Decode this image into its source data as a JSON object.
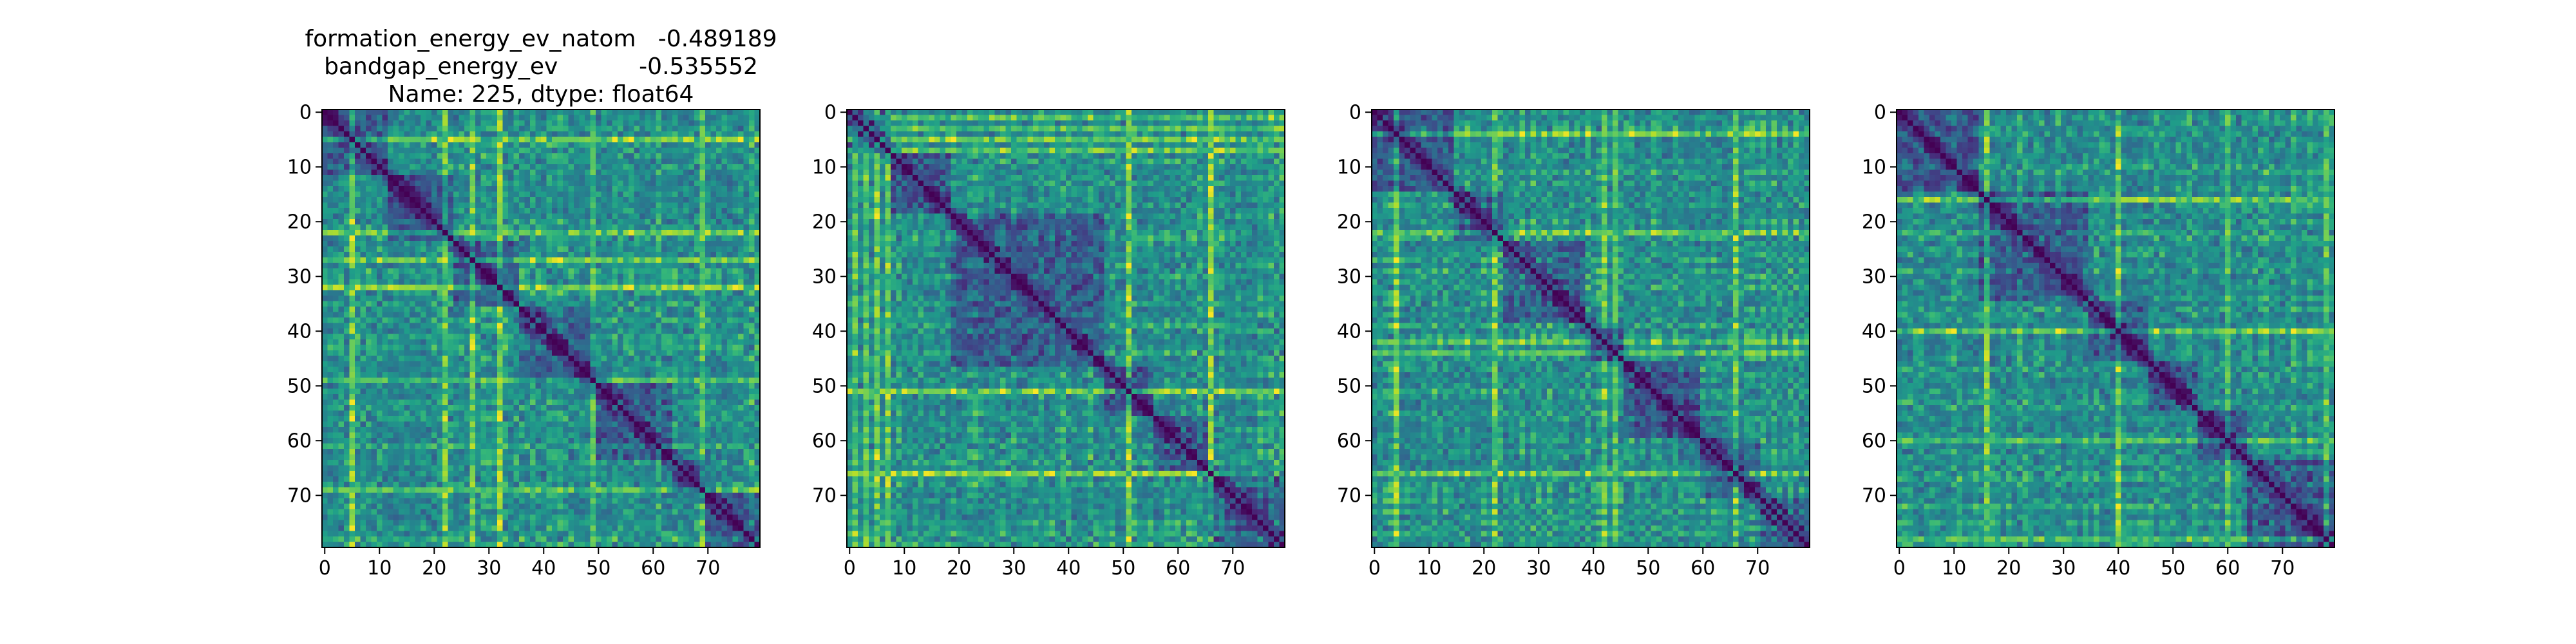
{
  "figure": {
    "title_lines": [
      "formation_energy_ev_natom   -0.489189",
      "bandgap_energy_ev           -0.535552",
      "Name: 225, dtype: float64"
    ]
  },
  "colormap": {
    "name": "viridis",
    "stops": [
      "#440154",
      "#482878",
      "#3e4989",
      "#31688e",
      "#26828e",
      "#1f9e89",
      "#35b779",
      "#6ece58",
      "#b5de2b",
      "#fde725"
    ]
  },
  "chart_data": [
    {
      "type": "heatmap",
      "title": "formation_energy_ev_natom   -0.489189\nbandgap_energy_ev           -0.535552\nName: 225, dtype: float64",
      "size": 80,
      "xticks": [
        0,
        10,
        20,
        30,
        40,
        50,
        60,
        70
      ],
      "yticks": [
        0,
        10,
        20,
        30,
        40,
        50,
        60,
        70
      ],
      "xlim": [
        -0.5,
        79.5
      ],
      "ylim": [
        79.5,
        -0.5
      ],
      "diagonal_value": 0,
      "block_boundaries": [
        12,
        24,
        36,
        50,
        64,
        70
      ],
      "bright_bands": [
        5,
        22,
        27,
        32,
        49,
        69
      ],
      "seed": 11
    },
    {
      "type": "heatmap",
      "title": "",
      "size": 80,
      "xticks": [
        0,
        10,
        20,
        30,
        40,
        50,
        60,
        70
      ],
      "yticks": [
        0,
        10,
        20,
        30,
        40,
        50,
        60,
        70
      ],
      "xlim": [
        -0.5,
        79.5
      ],
      "ylim": [
        79.5,
        -0.5
      ],
      "diagonal_value": 0,
      "block_boundaries": [
        8,
        19,
        47,
        56,
        66
      ],
      "bright_bands": [
        1,
        3,
        5,
        7,
        51,
        66
      ],
      "seed": 23
    },
    {
      "type": "heatmap",
      "title": "",
      "size": 80,
      "xticks": [
        0,
        10,
        20,
        30,
        40,
        50,
        60,
        70
      ],
      "yticks": [
        0,
        10,
        20,
        30,
        40,
        50,
        60,
        70
      ],
      "xlim": [
        -0.5,
        79.5
      ],
      "ylim": [
        79.5,
        -0.5
      ],
      "diagonal_value": 0,
      "block_boundaries": [
        15,
        24,
        39,
        46,
        60,
        71
      ],
      "bright_bands": [
        4,
        22,
        42,
        44,
        66
      ],
      "seed": 37
    },
    {
      "type": "heatmap",
      "title": "",
      "size": 80,
      "xticks": [
        0,
        10,
        20,
        30,
        40,
        50,
        60,
        70
      ],
      "yticks": [
        0,
        10,
        20,
        30,
        40,
        50,
        60,
        70
      ],
      "xlim": [
        -0.5,
        79.5
      ],
      "ylim": [
        79.5,
        -0.5
      ],
      "diagonal_value": 0,
      "block_boundaries": [
        15,
        35,
        46,
        55,
        64
      ],
      "bright_bands": [
        16,
        40,
        60,
        78
      ],
      "seed": 53
    }
  ]
}
